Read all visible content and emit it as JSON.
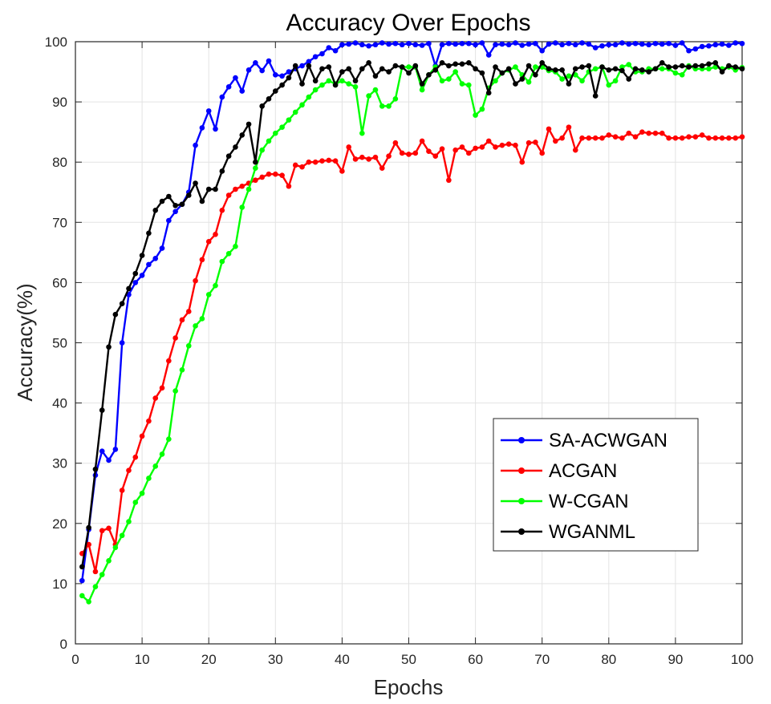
{
  "chart_data": {
    "type": "line",
    "title": "Accuracy Over Epochs",
    "xlabel": "Epochs",
    "ylabel": "Accuracy(%)",
    "xlim": [
      0,
      100
    ],
    "ylim": [
      0,
      100
    ],
    "xticks": [
      0,
      10,
      20,
      30,
      40,
      50,
      60,
      70,
      80,
      90,
      100
    ],
    "yticks": [
      0,
      10,
      20,
      30,
      40,
      50,
      60,
      70,
      80,
      90,
      100
    ],
    "grid": true,
    "legend_position": "lower-right",
    "series": [
      {
        "name": "SA-ACWGAN",
        "color": "#0000ff",
        "values": [
          10.5,
          19.0,
          28.0,
          32.0,
          30.5,
          32.3,
          50.0,
          58.0,
          60.0,
          61.2,
          63.0,
          64.0,
          65.7,
          70.3,
          71.8,
          73.0,
          75.0,
          82.8,
          85.7,
          88.5,
          85.5,
          90.8,
          92.5,
          94.0,
          91.8,
          95.3,
          96.5,
          95.2,
          96.8,
          94.5,
          94.3,
          95.0,
          95.5,
          96.0,
          96.7,
          97.5,
          98.0,
          99.0,
          98.5,
          99.5,
          99.6,
          99.8,
          99.5,
          99.3,
          99.5,
          99.8,
          99.6,
          99.7,
          99.5,
          99.7,
          99.5,
          99.4,
          99.7,
          96.0,
          99.5,
          99.7,
          99.6,
          99.7,
          99.7,
          99.5,
          99.8,
          97.8,
          99.5,
          99.6,
          99.5,
          99.8,
          99.4,
          99.6,
          99.7,
          98.5,
          99.6,
          99.8,
          99.5,
          99.7,
          99.5,
          99.8,
          99.6,
          99.0,
          99.3,
          99.5,
          99.5,
          99.8,
          99.6,
          99.7,
          99.6,
          99.5,
          99.7,
          99.6,
          99.7,
          99.4,
          99.8,
          98.5,
          98.8,
          99.2,
          99.3,
          99.5,
          99.6,
          99.4,
          99.8,
          99.7
        ]
      },
      {
        "name": "ACGAN",
        "color": "#ff0000",
        "values": [
          15.0,
          16.5,
          12.0,
          18.8,
          19.2,
          16.5,
          25.5,
          28.8,
          31.0,
          34.5,
          37.0,
          40.8,
          42.5,
          47.0,
          50.8,
          53.8,
          55.2,
          60.3,
          63.8,
          66.8,
          68.0,
          72.0,
          74.5,
          75.5,
          76.0,
          76.5,
          77.0,
          77.5,
          78.0,
          78.0,
          77.8,
          76.0,
          79.5,
          79.2,
          80.0,
          80.0,
          80.2,
          80.3,
          80.2,
          78.5,
          82.5,
          80.5,
          80.8,
          80.5,
          80.8,
          79.0,
          81.0,
          83.2,
          81.5,
          81.3,
          81.5,
          83.5,
          81.8,
          81.0,
          82.2,
          77.0,
          82.0,
          82.5,
          81.5,
          82.3,
          82.5,
          83.5,
          82.5,
          82.8,
          83.0,
          82.8,
          80.0,
          83.2,
          83.3,
          81.5,
          85.5,
          83.5,
          84.0,
          85.8,
          82.0,
          84.0,
          84.0,
          84.0,
          84.0,
          84.5,
          84.2,
          84.0,
          84.8,
          84.2,
          85.0,
          84.8,
          84.8,
          84.8,
          84.0,
          84.0,
          84.0,
          84.2,
          84.2,
          84.5,
          84.0,
          84.0,
          84.0,
          84.0,
          84.0,
          84.2
        ]
      },
      {
        "name": "W-CGAN",
        "color": "#00ff00",
        "values": [
          8.0,
          7.0,
          9.5,
          11.5,
          13.8,
          16.0,
          18.0,
          20.3,
          23.5,
          25.0,
          27.5,
          29.5,
          31.5,
          34.0,
          42.0,
          45.5,
          49.5,
          52.8,
          54.0,
          58.0,
          59.5,
          63.5,
          64.8,
          66.0,
          72.5,
          75.5,
          79.0,
          82.0,
          83.5,
          84.8,
          85.8,
          87.0,
          88.3,
          89.5,
          90.8,
          92.0,
          92.8,
          93.5,
          93.0,
          93.5,
          93.0,
          92.5,
          84.8,
          91.0,
          92.0,
          89.3,
          89.3,
          90.5,
          95.8,
          95.8,
          95.8,
          92.0,
          94.5,
          95.8,
          93.5,
          93.8,
          95.0,
          93.0,
          92.8,
          87.8,
          88.8,
          92.3,
          93.5,
          94.8,
          95.3,
          95.8,
          94.5,
          93.3,
          95.8,
          95.8,
          95.2,
          95.0,
          93.8,
          94.3,
          94.5,
          93.5,
          95.0,
          95.5,
          95.8,
          92.8,
          93.5,
          95.8,
          96.2,
          95.0,
          95.0,
          95.5,
          95.5,
          95.5,
          95.5,
          94.8,
          94.5,
          96.0,
          95.5,
          95.5,
          95.5,
          95.8,
          95.5,
          95.8,
          95.3,
          95.7
        ]
      },
      {
        "name": "WGANML",
        "color": "#000000",
        "values": [
          12.8,
          19.3,
          29.0,
          38.8,
          49.3,
          54.7,
          56.5,
          59.0,
          61.5,
          64.5,
          68.2,
          72.0,
          73.5,
          74.3,
          72.8,
          73.0,
          74.5,
          76.5,
          73.5,
          75.5,
          75.5,
          78.5,
          81.0,
          82.5,
          84.5,
          86.3,
          80.0,
          89.3,
          90.5,
          91.8,
          92.8,
          94.0,
          96.0,
          93.0,
          96.0,
          93.5,
          95.5,
          95.8,
          92.8,
          95.0,
          95.5,
          93.5,
          95.5,
          96.5,
          94.3,
          95.5,
          95.0,
          96.0,
          95.8,
          94.8,
          96.0,
          93.0,
          94.5,
          95.3,
          96.5,
          96.0,
          96.3,
          96.3,
          96.5,
          95.5,
          94.8,
          91.5,
          95.8,
          94.8,
          95.5,
          93.0,
          93.8,
          96.0,
          94.5,
          96.5,
          95.5,
          95.3,
          95.3,
          93.0,
          95.5,
          95.8,
          96.0,
          91.0,
          95.8,
          95.3,
          95.5,
          95.2,
          93.8,
          95.5,
          95.3,
          95.0,
          95.5,
          96.5,
          95.8,
          95.8,
          96.0,
          95.8,
          96.0,
          96.0,
          96.3,
          96.5,
          95.0,
          96.0,
          95.8,
          95.5
        ]
      }
    ]
  }
}
